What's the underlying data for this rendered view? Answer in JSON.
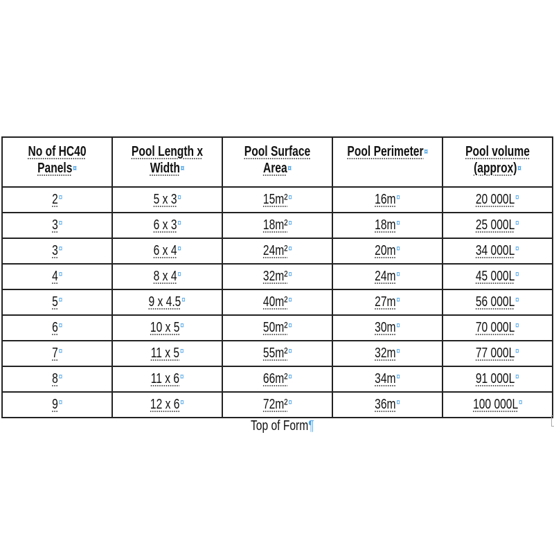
{
  "table": {
    "headers": [
      "No of HC40 Panels",
      "Pool Length x Width",
      "Pool Surface Area",
      "Pool Perimeter",
      "Pool volume (approx)"
    ],
    "rows": [
      [
        "2",
        "5 x 3",
        "15m²",
        "16m",
        "20 000L"
      ],
      [
        "3",
        "6 x 3",
        "18m²",
        "18m",
        "25 000L"
      ],
      [
        "3",
        "6 x 4",
        "24m²",
        "20m",
        "34 000L"
      ],
      [
        "4",
        "8 x 4",
        "32m²",
        "24m",
        "45 000L"
      ],
      [
        "5",
        "9 x 4.5",
        "40m²",
        "27m",
        "56 000L"
      ],
      [
        "6",
        "10 x 5",
        "50m²",
        "30m",
        "70 000L"
      ],
      [
        "7",
        "11 x 5",
        "55m²",
        "32m",
        "77 000L"
      ],
      [
        "8",
        "11 x 6",
        "66m²",
        "34m",
        "91 000L"
      ],
      [
        "9",
        "12 x 6",
        "72m²",
        "36m",
        "100 000L"
      ]
    ]
  },
  "footer": {
    "text": "Top of Form"
  },
  "colors": {
    "formatting_marks": "#4aa3e6",
    "border": "#222222"
  }
}
